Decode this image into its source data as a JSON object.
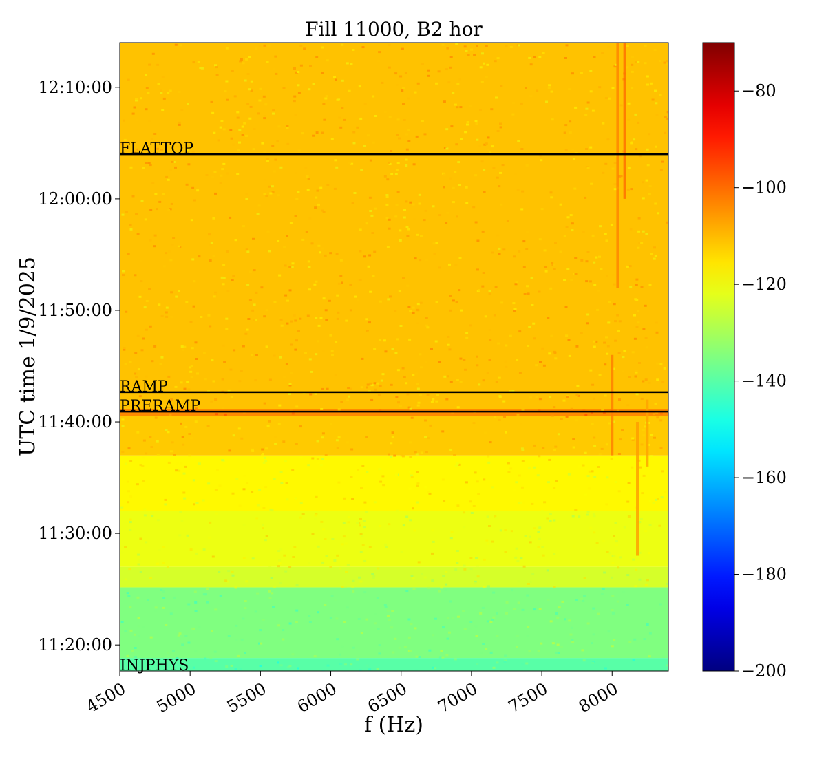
{
  "chart_data": {
    "type": "heatmap",
    "title": "Fill 11000, B2 hor",
    "xlabel": "f (Hz)",
    "ylabel": "UTC time 1/9/2025",
    "xlim": [
      4500,
      8400
    ],
    "ylim": [
      "11:17:40",
      "12:14:00"
    ],
    "x_ticks": [
      {
        "value": 4500,
        "label": "4500"
      },
      {
        "value": 5000,
        "label": "5000"
      },
      {
        "value": 5500,
        "label": "5500"
      },
      {
        "value": 6000,
        "label": "6000"
      },
      {
        "value": 6500,
        "label": "6500"
      },
      {
        "value": 7000,
        "label": "7000"
      },
      {
        "value": 7500,
        "label": "7500"
      },
      {
        "value": 8000,
        "label": "8000"
      }
    ],
    "y_ticks": [
      {
        "value": "11:20:00",
        "label": "11:20:00"
      },
      {
        "value": "11:30:00",
        "label": "11:30:00"
      },
      {
        "value": "11:40:00",
        "label": "11:40:00"
      },
      {
        "value": "11:50:00",
        "label": "11:50:00"
      },
      {
        "value": "12:00:00",
        "label": "12:00:00"
      },
      {
        "value": "12:10:00",
        "label": "12:10:00"
      }
    ],
    "colorbar": {
      "colormap": "jet",
      "range": [
        -200,
        -70
      ],
      "ticks": [
        {
          "value": -80,
          "label": "−80"
        },
        {
          "value": -100,
          "label": "−100"
        },
        {
          "value": -120,
          "label": "−120"
        },
        {
          "value": -140,
          "label": "−140"
        },
        {
          "value": -160,
          "label": "−160"
        },
        {
          "value": -180,
          "label": "−180"
        },
        {
          "value": -200,
          "label": "−200"
        }
      ]
    },
    "events": [
      {
        "label": "FLATTOP",
        "time": "12:04:00"
      },
      {
        "label": "RAMP",
        "time": "11:42:40"
      },
      {
        "label": "PRERAMP",
        "time": "11:40:55"
      },
      {
        "label": "INJPHYS",
        "time": "11:17:40"
      }
    ],
    "bands": [
      {
        "from": "11:17:40",
        "to": "11:18:50",
        "level": -140
      },
      {
        "from": "11:18:50",
        "to": "11:25:10",
        "level": -135
      },
      {
        "from": "11:25:10",
        "to": "11:27:00",
        "level": -124
      },
      {
        "from": "11:27:00",
        "to": "11:32:00",
        "level": -121
      },
      {
        "from": "11:32:00",
        "to": "11:37:00",
        "level": -118
      },
      {
        "from": "11:37:00",
        "to": "11:40:30",
        "level": -112
      },
      {
        "from": "11:40:30",
        "to": "11:41:10",
        "level": -104
      },
      {
        "from": "11:41:10",
        "to": "12:14:00",
        "level": -111
      }
    ],
    "spectral_lines": [
      {
        "f": 8000,
        "from": "11:37:00",
        "to": "11:46:00",
        "level": -102
      },
      {
        "f": 8040,
        "from": "11:52:00",
        "to": "12:14:00",
        "level": -103
      },
      {
        "f": 8090,
        "from": "12:00:00",
        "to": "12:14:00",
        "level": -100
      },
      {
        "f": 8180,
        "from": "11:28:00",
        "to": "11:40:00",
        "level": -106
      },
      {
        "f": 8250,
        "from": "11:36:00",
        "to": "11:42:00",
        "level": -107
      }
    ]
  }
}
